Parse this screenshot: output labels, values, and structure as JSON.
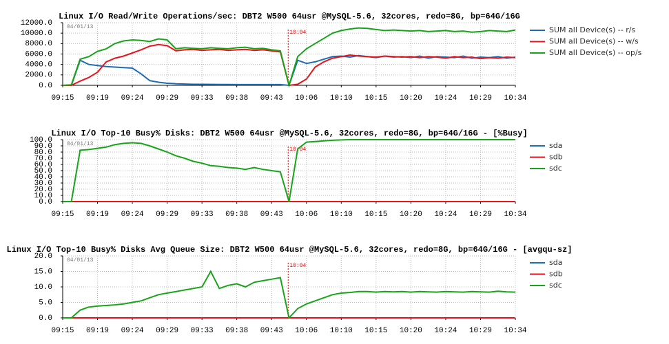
{
  "chart_data": [
    {
      "type": "line",
      "title": "Linux I/O Read/Write Operations/sec: DBT2 W500 64usr @MySQL-5.6, 32cores, redo=8G, bp=64G/16G",
      "annotations": [
        "04/01/13",
        "10:04"
      ],
      "categories": [
        "09:15",
        null,
        null,
        null,
        "09:19",
        null,
        null,
        null,
        "09:24",
        null,
        null,
        null,
        "09:29",
        null,
        null,
        null,
        "09:33",
        null,
        null,
        null,
        "09:38",
        null,
        null,
        null,
        "09:43",
        null,
        null,
        null,
        "10:06",
        null,
        null,
        null,
        "10:10",
        null,
        null,
        null,
        "10:15",
        null,
        null,
        null,
        "10:20",
        null,
        null,
        null,
        "10:24",
        null,
        null,
        null,
        "10:29",
        null,
        null,
        null,
        "10:34"
      ],
      "ylim": [
        0,
        12000
      ],
      "yticks": [
        {
          "value": 0,
          "label": "0.0"
        },
        {
          "value": 2000,
          "label": "2000.0"
        },
        {
          "value": 4000,
          "label": "4000.0"
        },
        {
          "value": 6000,
          "label": "6000.0"
        },
        {
          "value": 8000,
          "label": "8000.0"
        },
        {
          "value": 10000,
          "label": "10000.0"
        },
        {
          "value": 12000,
          "label": "12000.0"
        }
      ],
      "grid": true,
      "series": [
        {
          "name": "SUM all Device(s) -- r/s",
          "color": "#1c6db4",
          "values": [
            0,
            0,
            4800,
            4000,
            3800,
            3600,
            3500,
            3400,
            3300,
            2200,
            900,
            600,
            400,
            300,
            250,
            200,
            200,
            180,
            170,
            160,
            150,
            150,
            150,
            150,
            150,
            150,
            0,
            4800,
            4200,
            4500,
            5000,
            5500,
            5600,
            5400,
            5700,
            5500,
            5300,
            5600,
            5400,
            5500,
            5300,
            5600,
            5200,
            5500,
            5400,
            5300,
            5600,
            5200,
            5400,
            5300,
            5500,
            5200,
            5400
          ]
        },
        {
          "name": "SUM all Device(s) -- w/s",
          "color": "#e8141b",
          "values": [
            0,
            0,
            800,
            1500,
            2500,
            4500,
            5200,
            5600,
            6200,
            6800,
            7500,
            7800,
            7600,
            6600,
            6800,
            6900,
            6700,
            6800,
            6900,
            6700,
            6800,
            6900,
            6700,
            6800,
            6600,
            6400,
            0,
            200,
            1200,
            3500,
            4500,
            5200,
            5500,
            5800,
            5600,
            5500,
            5400,
            5600,
            5500,
            5400,
            5500,
            5300,
            5500,
            5400,
            5200,
            5500,
            5300,
            5400,
            5100,
            5300,
            5200,
            5400,
            5300
          ]
        },
        {
          "name": "SUM all Device(s) -- op/s",
          "color": "#16a516",
          "values": [
            0,
            100,
            5000,
            5500,
            6500,
            7000,
            8000,
            8500,
            8700,
            8600,
            8400,
            8900,
            8700,
            7000,
            7200,
            7100,
            7000,
            7200,
            7100,
            7000,
            7200,
            7300,
            7000,
            7100,
            6800,
            6600,
            0,
            5500,
            7000,
            8000,
            9000,
            10000,
            10500,
            10800,
            11000,
            10900,
            10700,
            10500,
            10600,
            10500,
            10400,
            10500,
            10300,
            10400,
            10500,
            10300,
            10400,
            10200,
            10300,
            10500,
            10400,
            10300,
            10600
          ]
        }
      ]
    },
    {
      "type": "line",
      "title": "Linux I/O Top-10 Busy% Disks: DBT2 W500 64usr @MySQL-5.6, 32cores, redo=8G, bp=64G/16G - [%Busy]",
      "annotations": [
        "04/01/13",
        "10:04"
      ],
      "categories": [
        "09:15",
        null,
        null,
        null,
        "09:19",
        null,
        null,
        null,
        "09:24",
        null,
        null,
        null,
        "09:29",
        null,
        null,
        null,
        "09:33",
        null,
        null,
        null,
        "09:38",
        null,
        null,
        null,
        "09:43",
        null,
        null,
        null,
        "10:06",
        null,
        null,
        null,
        "10:10",
        null,
        null,
        null,
        "10:15",
        null,
        null,
        null,
        "10:20",
        null,
        null,
        null,
        "10:24",
        null,
        null,
        null,
        "10:29",
        null,
        null,
        null,
        "10:34"
      ],
      "ylim": [
        0,
        100
      ],
      "yticks": [
        {
          "value": 0,
          "label": "0.0"
        },
        {
          "value": 10,
          "label": "10.0"
        },
        {
          "value": 20,
          "label": "20.0"
        },
        {
          "value": 30,
          "label": "30.0"
        },
        {
          "value": 40,
          "label": "40.0"
        },
        {
          "value": 50,
          "label": "50.0"
        },
        {
          "value": 60,
          "label": "60.0"
        },
        {
          "value": 70,
          "label": "70.0"
        },
        {
          "value": 80,
          "label": "80.0"
        },
        {
          "value": 90,
          "label": "90.0"
        },
        {
          "value": 100,
          "label": "100.0"
        }
      ],
      "grid": true,
      "series": [
        {
          "name": "sda",
          "color": "#1c6db4",
          "values": [
            0,
            0,
            0,
            0,
            0,
            0,
            0,
            0,
            0,
            0,
            0,
            0,
            0,
            0,
            0,
            0,
            0,
            0,
            0,
            0,
            0,
            0,
            0,
            0,
            0,
            0,
            0,
            0,
            0,
            0,
            0,
            0,
            0,
            0,
            0,
            0,
            0,
            0,
            0,
            0,
            0,
            0,
            0,
            0,
            0,
            0,
            0,
            0,
            0,
            0,
            0,
            0,
            0
          ]
        },
        {
          "name": "sdb",
          "color": "#e8141b",
          "values": [
            0,
            0,
            0,
            0,
            0,
            0,
            0,
            0,
            0,
            0,
            0,
            0,
            0,
            0,
            0,
            0,
            0,
            0,
            0,
            0,
            0,
            0,
            0,
            0,
            0,
            0,
            0,
            0,
            0,
            0,
            0,
            0,
            0,
            0,
            0,
            0,
            0,
            0,
            0,
            0,
            0,
            0,
            0,
            0,
            0,
            0,
            0,
            0,
            0,
            0,
            0,
            0,
            0
          ]
        },
        {
          "name": "sdc",
          "color": "#16a516",
          "values": [
            0,
            0,
            83,
            84,
            86,
            88,
            92,
            94,
            95,
            94,
            90,
            85,
            80,
            74,
            70,
            65,
            62,
            58,
            57,
            55,
            54,
            52,
            55,
            52,
            50,
            48,
            0,
            85,
            96,
            97,
            98,
            99,
            99.5,
            100,
            100,
            100,
            100,
            100,
            100,
            100,
            100,
            100,
            100,
            100,
            100,
            100,
            100,
            100,
            100,
            100,
            100,
            100,
            100
          ]
        }
      ]
    },
    {
      "type": "line",
      "title": "Linux I/O Top-10 Busy% Disks Avg Queue Size: DBT2 W500 64usr @MySQL-5.6, 32cores, redo=8G, bp=64G/16G - [avgqu-sz]",
      "annotations": [
        "04/01/13",
        "10:04"
      ],
      "categories": [
        "09:15",
        null,
        null,
        null,
        "09:19",
        null,
        null,
        null,
        "09:24",
        null,
        null,
        null,
        "09:29",
        null,
        null,
        null,
        "09:33",
        null,
        null,
        null,
        "09:38",
        null,
        null,
        null,
        "09:43",
        null,
        null,
        null,
        "10:06",
        null,
        null,
        null,
        "10:10",
        null,
        null,
        null,
        "10:15",
        null,
        null,
        null,
        "10:20",
        null,
        null,
        null,
        "10:24",
        null,
        null,
        null,
        "10:29",
        null,
        null,
        null,
        "10:34"
      ],
      "ylim": [
        0,
        20
      ],
      "yticks": [
        {
          "value": 0,
          "label": "0.0"
        },
        {
          "value": 5,
          "label": "5.0"
        },
        {
          "value": 10,
          "label": "10.0"
        },
        {
          "value": 15,
          "label": "15.0"
        },
        {
          "value": 20,
          "label": "20.0"
        }
      ],
      "grid": true,
      "series": [
        {
          "name": "sda",
          "color": "#1c6db4",
          "values": [
            0,
            0,
            0,
            0,
            0,
            0,
            0,
            0,
            0,
            0,
            0,
            0,
            0,
            0,
            0,
            0,
            0,
            0,
            0,
            0,
            0,
            0,
            0,
            0,
            0,
            0,
            0,
            0,
            0,
            0,
            0,
            0,
            0,
            0,
            0,
            0,
            0,
            0,
            0,
            0,
            0,
            0,
            0,
            0,
            0,
            0,
            0,
            0,
            0,
            0,
            0,
            0,
            0
          ]
        },
        {
          "name": "sdb",
          "color": "#e8141b",
          "values": [
            0,
            0,
            0,
            0,
            0,
            0,
            0,
            0,
            0,
            0,
            0,
            0,
            0,
            0,
            0,
            0,
            0,
            0,
            0,
            0,
            0,
            0,
            0,
            0,
            0,
            0,
            0,
            0,
            0,
            0,
            0,
            0,
            0,
            0,
            0,
            0,
            0,
            0,
            0,
            0,
            0,
            0,
            0,
            0,
            0,
            0,
            0,
            0,
            0,
            0,
            0,
            0,
            0
          ]
        },
        {
          "name": "sdc",
          "color": "#16a516",
          "values": [
            0,
            0,
            2.5,
            3.5,
            3.8,
            4,
            4.2,
            4.5,
            5,
            5.5,
            6.5,
            7.5,
            8,
            8.5,
            9,
            9.5,
            10,
            15,
            9.5,
            10.5,
            11,
            10,
            11.5,
            12,
            12.5,
            13,
            0,
            3,
            4.5,
            5.5,
            6.5,
            7.5,
            8,
            8.2,
            8.5,
            8.5,
            8.3,
            8.5,
            8.4,
            8.5,
            8.3,
            8.5,
            8.4,
            8.3,
            8.5,
            8.4,
            8.3,
            8.5,
            8.4,
            8.3,
            8.6,
            8.4,
            8.3
          ]
        }
      ]
    }
  ]
}
